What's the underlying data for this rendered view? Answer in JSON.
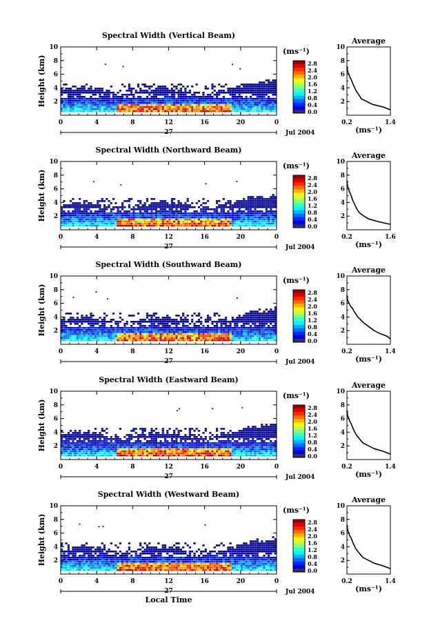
{
  "chart_data": [
    {
      "type": "heatmap",
      "title": "Spectral Width (Vertical Beam)",
      "ylabel": "Height (km)",
      "ylim": [
        0,
        10
      ],
      "yticks": [
        "2",
        "4",
        "6",
        "8",
        "10"
      ],
      "xlim": [
        0,
        24
      ],
      "xticks": [
        "0",
        "4",
        "8",
        "12",
        "16",
        "20",
        "0"
      ],
      "date_label": "27",
      "date_right": "Jul 2004",
      "colorbar": {
        "unit": "(ms⁻¹)",
        "ticks": [
          "2.8",
          "2.4",
          "2.0",
          "1.6",
          "1.2",
          "0.8",
          "0.4",
          "0.0"
        ],
        "range": [
          0,
          3.0
        ]
      },
      "profile": {
        "title": "Average",
        "xlabel": "(ms⁻¹)",
        "xticks": [
          "0.2",
          "1.4"
        ],
        "xlim": [
          0.2,
          1.4
        ],
        "heights": [
          0.8,
          1.2,
          1.6,
          2.0,
          2.4,
          2.8,
          3.2,
          3.6,
          4.0,
          4.4,
          4.8,
          5.2,
          5.6,
          6.0,
          6.4,
          6.8,
          7.2
        ],
        "values": [
          1.4,
          1.2,
          0.9,
          0.75,
          0.6,
          0.55,
          0.5,
          0.45,
          0.42,
          0.38,
          0.35,
          0.32,
          0.28,
          0.25,
          0.22,
          0.21,
          0.2
        ]
      }
    },
    {
      "type": "heatmap",
      "title": "Spectral Width (Northward Beam)",
      "ylabel": "Height (km)",
      "ylim": [
        0,
        10
      ],
      "yticks": [
        "2",
        "4",
        "6",
        "8",
        "10"
      ],
      "xlim": [
        0,
        24
      ],
      "xticks": [
        "0",
        "4",
        "8",
        "12",
        "16",
        "20",
        "0"
      ],
      "date_label": "27",
      "date_right": "Jul 2004",
      "colorbar": {
        "unit": "(ms⁻¹)",
        "ticks": [
          "2.8",
          "2.4",
          "2.0",
          "1.6",
          "1.2",
          "0.8",
          "0.4",
          "0.0"
        ],
        "range": [
          0,
          3.0
        ]
      },
      "profile": {
        "title": "Average",
        "xlabel": "(ms⁻¹)",
        "xticks": [
          "0.2",
          "1.6"
        ],
        "xlim": [
          0.2,
          1.6
        ],
        "heights": [
          0.8,
          1.2,
          1.6,
          2.0,
          2.4,
          2.8,
          3.2,
          3.6,
          4.0,
          4.4,
          4.8,
          5.2,
          5.6,
          6.0,
          6.4,
          6.8,
          7.2
        ],
        "values": [
          1.6,
          1.2,
          0.9,
          0.75,
          0.62,
          0.55,
          0.5,
          0.46,
          0.42,
          0.38,
          0.35,
          0.32,
          0.28,
          0.25,
          0.22,
          0.21,
          0.2
        ]
      }
    },
    {
      "type": "heatmap",
      "title": "Spectral Width (Southward Beam)",
      "ylabel": "Height (km)",
      "ylim": [
        0,
        10
      ],
      "yticks": [
        "2",
        "4",
        "6",
        "8",
        "10"
      ],
      "xlim": [
        0,
        24
      ],
      "xticks": [
        "0",
        "4",
        "8",
        "12",
        "16",
        "20",
        "0"
      ],
      "date_label": "27",
      "date_right": "Jul 2004",
      "colorbar": {
        "unit": "(ms⁻¹)",
        "ticks": [
          "2.8",
          "2.4",
          "2.0",
          "1.6",
          "1.2",
          "0.8",
          "0.4",
          "0.0"
        ],
        "range": [
          0,
          3.0
        ]
      },
      "profile": {
        "title": "Average",
        "xlabel": "(ms⁻¹)",
        "xticks": [
          "0.2",
          "1.4"
        ],
        "xlim": [
          0.2,
          1.4
        ],
        "heights": [
          0.8,
          1.2,
          1.6,
          2.0,
          2.4,
          2.8,
          3.2,
          3.6,
          4.0,
          4.4,
          4.8,
          5.2,
          5.6,
          6.0,
          6.4,
          6.8,
          7.2
        ],
        "values": [
          1.4,
          1.3,
          1.1,
          0.95,
          0.85,
          0.75,
          0.65,
          0.58,
          0.5,
          0.45,
          0.4,
          0.36,
          0.3,
          0.26,
          0.22,
          0.21,
          0.2
        ]
      }
    },
    {
      "type": "heatmap",
      "title": "Spectral Width (Eastward Beam)",
      "ylabel": "Height (km)",
      "ylim": [
        0,
        10
      ],
      "yticks": [
        "2",
        "4",
        "6",
        "8",
        "10"
      ],
      "xlim": [
        0,
        24
      ],
      "xticks": [
        "0",
        "4",
        "8",
        "12",
        "16",
        "20",
        "0"
      ],
      "date_label": "27",
      "date_right": "Jul 2004",
      "colorbar": {
        "unit": "(ms⁻¹)",
        "ticks": [
          "2.8",
          "2.4",
          "2.0",
          "1.6",
          "1.2",
          "0.8",
          "0.4",
          "0.0"
        ],
        "range": [
          0,
          3.0
        ]
      },
      "profile": {
        "title": "Average",
        "xlabel": "(ms⁻¹)",
        "xticks": [
          "0.2",
          "1.4"
        ],
        "xlim": [
          0.2,
          1.4
        ],
        "heights": [
          0.8,
          1.2,
          1.6,
          2.0,
          2.4,
          2.8,
          3.2,
          3.6,
          4.0,
          4.4,
          4.8,
          5.2,
          5.6,
          6.0,
          6.4,
          6.8,
          7.2
        ],
        "values": [
          1.4,
          1.2,
          0.95,
          0.8,
          0.65,
          0.58,
          0.52,
          0.46,
          0.42,
          0.38,
          0.35,
          0.32,
          0.28,
          0.25,
          0.22,
          0.21,
          0.2
        ]
      }
    },
    {
      "type": "heatmap",
      "title": "Spectral Width (Westward Beam)",
      "ylabel": "Height (km)",
      "ylim": [
        0,
        10
      ],
      "yticks": [
        "2",
        "4",
        "6",
        "8",
        "10"
      ],
      "xlim": [
        0,
        24
      ],
      "xticks": [
        "0",
        "4",
        "8",
        "12",
        "16",
        "20",
        "0"
      ],
      "date_label": "27",
      "date_right": "Jul 2004",
      "xlabel": "Local Time",
      "colorbar": {
        "unit": "(ms⁻¹)",
        "ticks": [
          "2.8",
          "2.4",
          "2.0",
          "1.6",
          "1.2",
          "0.8",
          "0.4",
          "0.0"
        ],
        "range": [
          0,
          3.0
        ]
      },
      "profile": {
        "title": "Average",
        "xlabel": "(ms⁻¹)",
        "xticks": [
          "0.2",
          "1.4"
        ],
        "xlim": [
          0.2,
          1.4
        ],
        "heights": [
          0.8,
          1.2,
          1.6,
          2.0,
          2.4,
          2.8,
          3.2,
          3.6,
          4.0,
          4.4,
          4.8,
          5.2,
          5.6,
          6.0,
          6.4,
          6.8,
          7.2
        ],
        "values": [
          1.4,
          1.2,
          0.95,
          0.8,
          0.65,
          0.58,
          0.52,
          0.46,
          0.42,
          0.38,
          0.35,
          0.32,
          0.28,
          0.25,
          0.22,
          0.21,
          0.2
        ]
      }
    }
  ]
}
